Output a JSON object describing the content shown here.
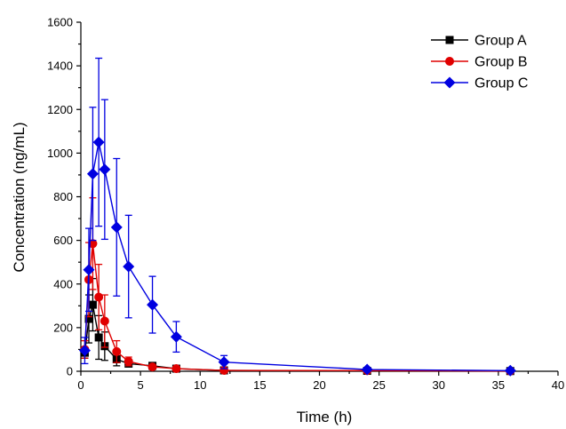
{
  "chart_data": {
    "type": "line",
    "xlabel": "Time (h)",
    "ylabel": "Concentration (ng/mL)",
    "xlim": [
      0,
      40
    ],
    "ylim": [
      0,
      1600
    ],
    "xticks": [
      "0",
      "5",
      "10",
      "15",
      "20",
      "25",
      "30",
      "35",
      "40"
    ],
    "yticks": [
      "0",
      "200",
      "400",
      "600",
      "800",
      "1000",
      "1200",
      "1400",
      "1600"
    ],
    "grid": false,
    "legend_position": "top-right",
    "series": [
      {
        "name": "Group A",
        "color": "#000000",
        "marker": "square",
        "points": [
          {
            "x": 0.33,
            "y": 85,
            "err": 25
          },
          {
            "x": 0.67,
            "y": 240,
            "err": 110
          },
          {
            "x": 1,
            "y": 305,
            "err": 120
          },
          {
            "x": 1.5,
            "y": 155,
            "err": 100
          },
          {
            "x": 2,
            "y": 115,
            "err": 65
          },
          {
            "x": 3,
            "y": 55,
            "err": 30
          },
          {
            "x": 4,
            "y": 35,
            "err": 15
          },
          {
            "x": 6,
            "y": 25,
            "err": 10
          },
          {
            "x": 8,
            "y": 12,
            "err": 6
          },
          {
            "x": 12,
            "y": 4,
            "err": 3
          },
          {
            "x": 24,
            "y": 2,
            "err": 2
          },
          {
            "x": 36,
            "y": 1,
            "err": 1
          }
        ]
      },
      {
        "name": "Group B",
        "color": "#e00000",
        "marker": "circle",
        "points": [
          {
            "x": 0.33,
            "y": 100,
            "err": 40
          },
          {
            "x": 0.67,
            "y": 420,
            "err": 170
          },
          {
            "x": 1,
            "y": 585,
            "err": 210
          },
          {
            "x": 1.5,
            "y": 340,
            "err": 150
          },
          {
            "x": 2,
            "y": 230,
            "err": 120
          },
          {
            "x": 3,
            "y": 90,
            "err": 50
          },
          {
            "x": 4,
            "y": 45,
            "err": 20
          },
          {
            "x": 6,
            "y": 20,
            "err": 8
          },
          {
            "x": 8,
            "y": 12,
            "err": 5
          },
          {
            "x": 12,
            "y": 4,
            "err": 3
          },
          {
            "x": 24,
            "y": 3,
            "err": 2
          },
          {
            "x": 36,
            "y": 1,
            "err": 1
          }
        ]
      },
      {
        "name": "Group C",
        "color": "#0000e0",
        "marker": "diamond",
        "points": [
          {
            "x": 0.33,
            "y": 95,
            "err": 60
          },
          {
            "x": 0.67,
            "y": 465,
            "err": 190
          },
          {
            "x": 1,
            "y": 905,
            "err": 305
          },
          {
            "x": 1.5,
            "y": 1050,
            "err": 385
          },
          {
            "x": 2,
            "y": 925,
            "err": 320
          },
          {
            "x": 3,
            "y": 660,
            "err": 315
          },
          {
            "x": 4,
            "y": 480,
            "err": 235
          },
          {
            "x": 6,
            "y": 305,
            "err": 130
          },
          {
            "x": 8,
            "y": 158,
            "err": 70
          },
          {
            "x": 12,
            "y": 42,
            "err": 30
          },
          {
            "x": 24,
            "y": 8,
            "err": 4
          },
          {
            "x": 36,
            "y": 3,
            "err": 2
          }
        ]
      }
    ]
  }
}
